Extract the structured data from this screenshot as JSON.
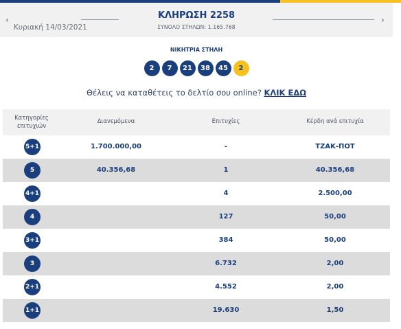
{
  "colors": {
    "brand_blue": "#1b3f7d",
    "brand_yellow": "#f6c121",
    "row_alt": "#dcdcdc",
    "header_bg": "#f1f1f1"
  },
  "header": {
    "date": "Κυριακή 14/03/2021",
    "title": "ΚΛΗΡΩΣΗ 2258",
    "total": "ΣΥΝΟΛΟ ΣΤΗΛΩΝ: 1.165.768",
    "prev_icon": "chevron-left-icon",
    "next_icon": "chevron-right-icon",
    "prev_glyph": "‹",
    "next_glyph": "›"
  },
  "winning": {
    "label": "ΝΙΚΗΤΡΙΑ ΣΤΗΛΗ",
    "numbers": [
      "2",
      "7",
      "21",
      "38",
      "45"
    ],
    "joker": "2"
  },
  "cta": {
    "text": "Θέλεις να καταθέτεις το δελτίο σου online?",
    "link": "ΚΛΙΚ ΕΔΩ"
  },
  "table": {
    "headers": {
      "category": "Κατηγορίες επιτυχιών",
      "distributed": "Διανεμόμενα",
      "winners": "Επιτυχίες",
      "prize": "Κέρδη ανά επιτυχία"
    },
    "rows": [
      {
        "cat": "5+1",
        "dist": "1.700.000,00",
        "win": "-",
        "prize": "ΤΖΑΚ-ΠΟΤ"
      },
      {
        "cat": "5",
        "dist": "40.356,68",
        "win": "1",
        "prize": "40.356,68"
      },
      {
        "cat": "4+1",
        "dist": "",
        "win": "4",
        "prize": "2.500,00"
      },
      {
        "cat": "4",
        "dist": "",
        "win": "127",
        "prize": "50,00"
      },
      {
        "cat": "3+1",
        "dist": "",
        "win": "384",
        "prize": "50,00"
      },
      {
        "cat": "3",
        "dist": "",
        "win": "6.732",
        "prize": "2,00"
      },
      {
        "cat": "2+1",
        "dist": "",
        "win": "4.552",
        "prize": "2,00"
      },
      {
        "cat": "1+1",
        "dist": "",
        "win": "19.630",
        "prize": "1,50"
      }
    ]
  }
}
